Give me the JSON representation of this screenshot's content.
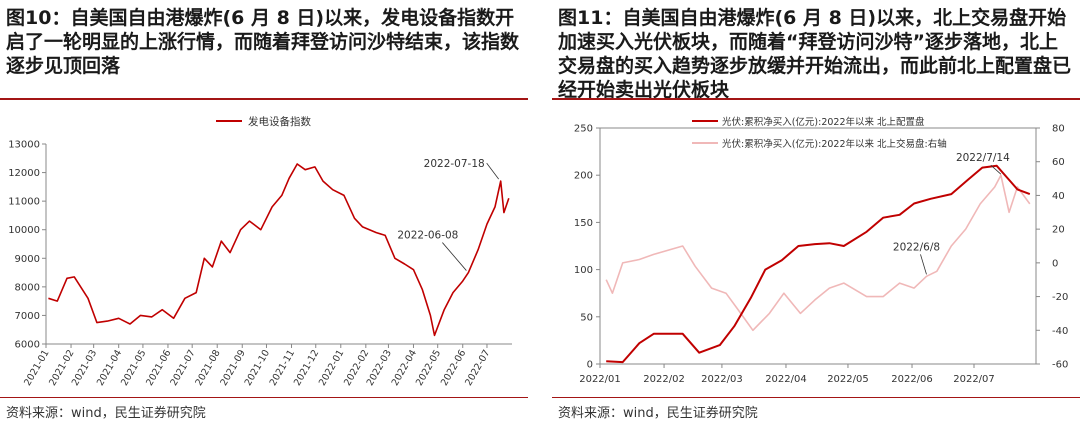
{
  "left": {
    "title": "图10：自美国自由港爆炸(6 月 8 日)以来，发电设备指数开启了一轮明显的上涨行情，而随着拜登访问沙特结束，该指数逐步见顶回落",
    "source": "资料来源：wind，民生证券研究院",
    "colors": {
      "line": "#c00000",
      "axis": "#888888",
      "grid": "#e6e6e6"
    },
    "chart_data": {
      "type": "line",
      "title": "",
      "xlabel": "",
      "ylabel": "",
      "ylim": [
        6000,
        13000
      ],
      "yticks": [
        6000,
        7000,
        8000,
        9000,
        10000,
        11000,
        12000,
        13000
      ],
      "xticks": [
        "2021-01",
        "2021-02",
        "2021-03",
        "2021-04",
        "2021-05",
        "2021-06",
        "2021-07",
        "2021-08",
        "2021-09",
        "2021-10",
        "2021-11",
        "2021-12",
        "2022-01",
        "2022-02",
        "2022-03",
        "2022-04",
        "2022-05",
        "2022-06",
        "2022-07"
      ],
      "series": [
        {
          "name": "发电设备指数",
          "x": [
            "2021-01-04",
            "2021-01-15",
            "2021-01-27",
            "2021-02-05",
            "2021-02-22",
            "2021-03-05",
            "2021-03-18",
            "2021-04-01",
            "2021-04-15",
            "2021-04-28",
            "2021-05-12",
            "2021-05-25",
            "2021-06-08",
            "2021-06-22",
            "2021-07-06",
            "2021-07-16",
            "2021-07-26",
            "2021-08-06",
            "2021-08-17",
            "2021-08-30",
            "2021-09-10",
            "2021-09-24",
            "2021-10-08",
            "2021-10-20",
            "2021-10-29",
            "2021-11-08",
            "2021-11-18",
            "2021-11-30",
            "2021-12-10",
            "2021-12-22",
            "2022-01-05",
            "2022-01-18",
            "2022-01-28",
            "2022-02-14",
            "2022-02-25",
            "2022-03-09",
            "2022-03-21",
            "2022-04-01",
            "2022-04-12",
            "2022-04-22",
            "2022-04-27",
            "2022-05-09",
            "2022-05-20",
            "2022-06-01",
            "2022-06-08",
            "2022-06-20",
            "2022-07-01",
            "2022-07-11",
            "2022-07-18",
            "2022-07-22",
            "2022-07-28"
          ],
          "values": [
            7600,
            7500,
            8300,
            8350,
            7600,
            6750,
            6800,
            6900,
            6700,
            7000,
            6950,
            7200,
            6900,
            7600,
            7800,
            9000,
            8700,
            9600,
            9200,
            10000,
            10300,
            10000,
            10800,
            11200,
            11800,
            12300,
            12100,
            12200,
            11700,
            11400,
            11200,
            10400,
            10100,
            9900,
            9800,
            9000,
            8800,
            8600,
            7900,
            7000,
            6300,
            7200,
            7800,
            8200,
            8500,
            9300,
            10200,
            10800,
            11700,
            10600,
            11100
          ]
        }
      ],
      "annotations": [
        {
          "text": "2022-07-18",
          "x": "2022-07-18",
          "y": 11700
        },
        {
          "text": "2022-06-08",
          "x": "2022-06-08",
          "y": 8500
        }
      ],
      "legend": "top-center",
      "grid": false
    }
  },
  "right": {
    "title": "图11：自美国自由港爆炸(6 月 8 日)以来，北上交易盘开始加速买入光伏板块，而随着“拜登访问沙特”逐步落地，北上交易盘的买入趋势逐步放缓并开始流出，而此前北上配置盘已经开始卖出光伏板块",
    "source": "资料来源：wind，民生证券研究院",
    "colors": {
      "series1": "#c00000",
      "series2": "#f0b8b8",
      "axis": "#888888",
      "grid": "#e6e6e6"
    },
    "chart_data": {
      "type": "line",
      "title": "",
      "xlabel": "",
      "ylabel": "",
      "ylim": [
        0,
        250
      ],
      "y2lim": [
        -60,
        80
      ],
      "yticks": [
        0,
        50,
        100,
        150,
        200,
        250
      ],
      "y2ticks": [
        -60,
        -40,
        -20,
        0,
        20,
        40,
        60,
        80
      ],
      "xticks": [
        "2022/01",
        "2022/02",
        "2022/03",
        "2022/04",
        "2022/05",
        "2022/06",
        "2022/07"
      ],
      "series": [
        {
          "name": "光伏:累积净买入(亿元):2022年以来 北上配置盘",
          "axis": "left",
          "x": [
            "2022-01-04",
            "2022-01-12",
            "2022-01-20",
            "2022-01-27",
            "2022-02-10",
            "2022-02-18",
            "2022-02-28",
            "2022-03-07",
            "2022-03-15",
            "2022-03-22",
            "2022-03-30",
            "2022-04-07",
            "2022-04-15",
            "2022-04-22",
            "2022-04-29",
            "2022-05-10",
            "2022-05-18",
            "2022-05-26",
            "2022-06-02",
            "2022-06-10",
            "2022-06-20",
            "2022-06-28",
            "2022-07-05",
            "2022-07-12",
            "2022-07-18",
            "2022-07-22",
            "2022-07-28"
          ],
          "values": [
            3,
            2,
            22,
            32,
            32,
            12,
            20,
            40,
            70,
            100,
            110,
            125,
            127,
            128,
            125,
            140,
            155,
            158,
            170,
            175,
            180,
            195,
            208,
            210,
            195,
            185,
            180
          ]
        },
        {
          "name": "光伏:累积净买入(亿元):2022年以来 北上交易盘:右轴",
          "axis": "right",
          "x": [
            "2022-01-04",
            "2022-01-07",
            "2022-01-12",
            "2022-01-20",
            "2022-01-27",
            "2022-02-10",
            "2022-02-16",
            "2022-02-24",
            "2022-03-03",
            "2022-03-09",
            "2022-03-16",
            "2022-03-24",
            "2022-03-31",
            "2022-04-08",
            "2022-04-15",
            "2022-04-22",
            "2022-04-29",
            "2022-05-10",
            "2022-05-18",
            "2022-05-26",
            "2022-06-02",
            "2022-06-08",
            "2022-06-13",
            "2022-06-20",
            "2022-06-27",
            "2022-07-04",
            "2022-07-11",
            "2022-07-14",
            "2022-07-18",
            "2022-07-22",
            "2022-07-28"
          ],
          "values": [
            -10,
            -18,
            0,
            2,
            5,
            10,
            -2,
            -15,
            -18,
            -28,
            -40,
            -30,
            -18,
            -30,
            -22,
            -15,
            -12,
            -20,
            -20,
            -12,
            -15,
            -8,
            -5,
            10,
            20,
            35,
            45,
            52,
            30,
            45,
            35
          ]
        }
      ],
      "annotations": [
        {
          "text": "2022/7/14",
          "x": "2022-07-14",
          "y2": 52
        },
        {
          "text": "2022/6/8",
          "x": "2022-06-08",
          "y2": -8
        }
      ],
      "legend": "top-left",
      "grid": false
    }
  }
}
